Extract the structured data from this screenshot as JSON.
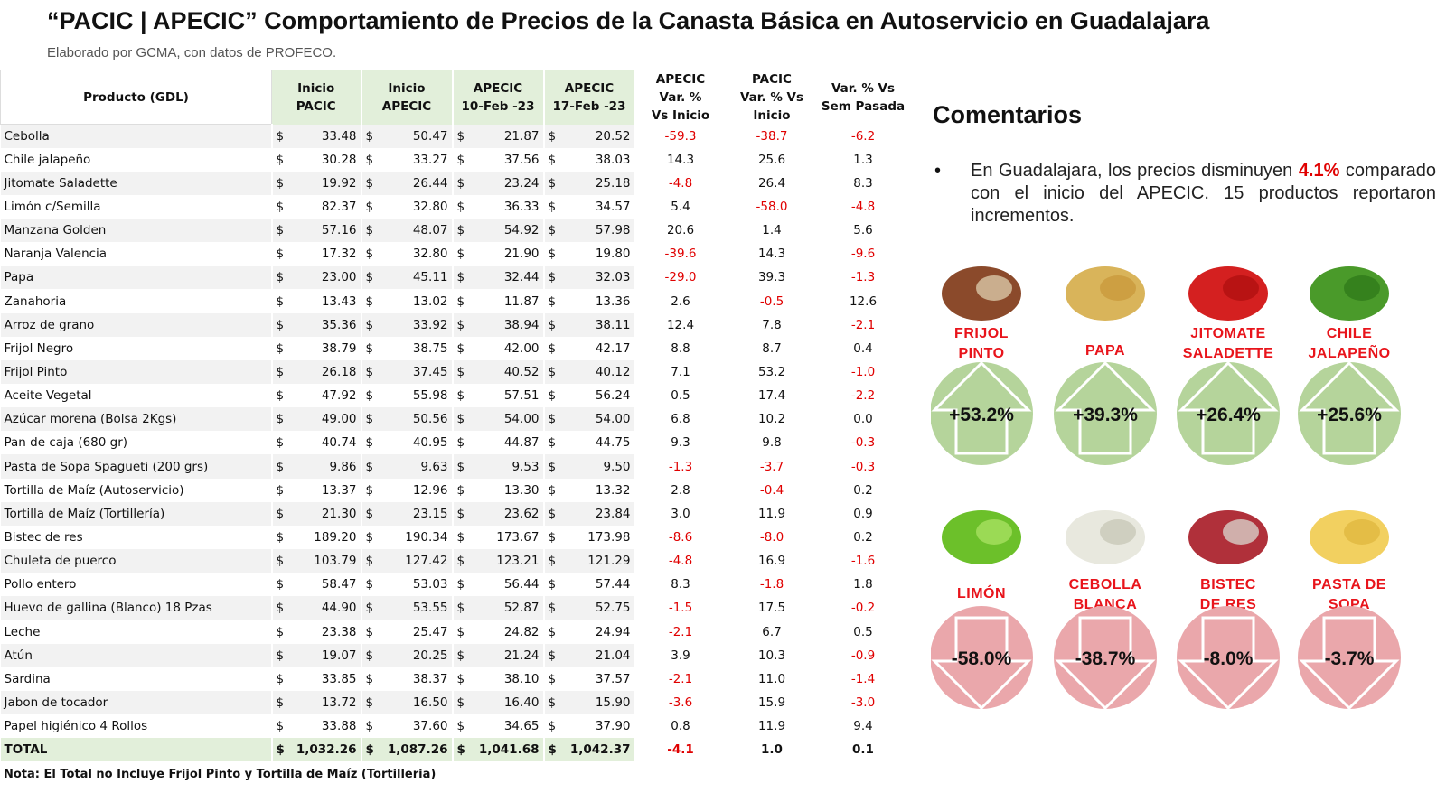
{
  "header": {
    "title": "“PACIC | APECIC” Comportamiento de Precios de la Canasta Básica en Autoservicio en Guadalajara",
    "subtitle": "Elaborado por GCMA, con datos de PROFECO."
  },
  "table": {
    "columns": [
      "Producto (GDL)",
      "Inicio\nPACIC",
      "Inicio\nAPECIC",
      "APECIC\n10-Feb -23",
      "APECIC\n17-Feb -23",
      "APECIC\nVar. %\nVs Inicio",
      "PACIC\nVar. % Vs\nInicio",
      "Var. % Vs\nSem Pasada"
    ],
    "currency": "$",
    "rows": [
      [
        "Cebolla",
        "33.48",
        "50.47",
        "21.87",
        "20.52",
        "-59.3",
        "-38.7",
        "-6.2"
      ],
      [
        "Chile jalapeño",
        "30.28",
        "33.27",
        "37.56",
        "38.03",
        "14.3",
        "25.6",
        "1.3"
      ],
      [
        "Jitomate Saladette",
        "19.92",
        "26.44",
        "23.24",
        "25.18",
        "-4.8",
        "26.4",
        "8.3"
      ],
      [
        "Limón c/Semilla",
        "82.37",
        "32.80",
        "36.33",
        "34.57",
        "5.4",
        "-58.0",
        "-4.8"
      ],
      [
        "Manzana Golden",
        "57.16",
        "48.07",
        "54.92",
        "57.98",
        "20.6",
        "1.4",
        "5.6"
      ],
      [
        "Naranja Valencia",
        "17.32",
        "32.80",
        "21.90",
        "19.80",
        "-39.6",
        "14.3",
        "-9.6"
      ],
      [
        "Papa",
        "23.00",
        "45.11",
        "32.44",
        "32.03",
        "-29.0",
        "39.3",
        "-1.3"
      ],
      [
        "Zanahoria",
        "13.43",
        "13.02",
        "11.87",
        "13.36",
        "2.6",
        "-0.5",
        "12.6"
      ],
      [
        "Arroz de grano",
        "35.36",
        "33.92",
        "38.94",
        "38.11",
        "12.4",
        "7.8",
        "-2.1"
      ],
      [
        "Frijol Negro",
        "38.79",
        "38.75",
        "42.00",
        "42.17",
        "8.8",
        "8.7",
        "0.4"
      ],
      [
        "Frijol Pinto",
        "26.18",
        "37.45",
        "40.52",
        "40.12",
        "7.1",
        "53.2",
        "-1.0"
      ],
      [
        "Aceite Vegetal",
        "47.92",
        "55.98",
        "57.51",
        "56.24",
        "0.5",
        "17.4",
        "-2.2"
      ],
      [
        "Azúcar morena (Bolsa 2Kgs)",
        "49.00",
        "50.56",
        "54.00",
        "54.00",
        "6.8",
        "10.2",
        "0.0"
      ],
      [
        "Pan de caja (680 gr)",
        "40.74",
        "40.95",
        "44.87",
        "44.75",
        "9.3",
        "9.8",
        "-0.3"
      ],
      [
        "Pasta de Sopa Spagueti (200 grs)",
        "9.86",
        "9.63",
        "9.53",
        "9.50",
        "-1.3",
        "-3.7",
        "-0.3"
      ],
      [
        "Tortilla de Maíz (Autoservicio)",
        "13.37",
        "12.96",
        "13.30",
        "13.32",
        "2.8",
        "-0.4",
        "0.2"
      ],
      [
        "Tortilla de Maíz (Tortillería)",
        "21.30",
        "23.15",
        "23.62",
        "23.84",
        "3.0",
        "11.9",
        "0.9"
      ],
      [
        "Bistec de res",
        "189.20",
        "190.34",
        "173.67",
        "173.98",
        "-8.6",
        "-8.0",
        "0.2"
      ],
      [
        "Chuleta de puerco",
        "103.79",
        "127.42",
        "123.21",
        "121.29",
        "-4.8",
        "16.9",
        "-1.6"
      ],
      [
        "Pollo entero",
        "58.47",
        "53.03",
        "56.44",
        "57.44",
        "8.3",
        "-1.8",
        "1.8"
      ],
      [
        "Huevo de gallina (Blanco) 18 Pzas",
        "44.90",
        "53.55",
        "52.87",
        "52.75",
        "-1.5",
        "17.5",
        "-0.2"
      ],
      [
        "Leche",
        "23.38",
        "25.47",
        "24.82",
        "24.94",
        "-2.1",
        "6.7",
        "0.5"
      ],
      [
        "Atún",
        "19.07",
        "20.25",
        "21.24",
        "21.04",
        "3.9",
        "10.3",
        "-0.9"
      ],
      [
        "Sardina",
        "33.85",
        "38.37",
        "38.10",
        "37.57",
        "-2.1",
        "11.0",
        "-1.4"
      ],
      [
        "Jabon de tocador",
        "13.72",
        "16.50",
        "16.40",
        "15.90",
        "-3.6",
        "15.9",
        "-3.0"
      ],
      [
        "Papel higiénico 4 Rollos",
        "33.88",
        "37.60",
        "34.65",
        "37.90",
        "0.8",
        "11.9",
        "9.4"
      ]
    ],
    "total_row": [
      "TOTAL",
      "1,032.26",
      "1,087.26",
      "1,041.68",
      "1,042.37",
      "-4.1",
      "1.0",
      "0.1"
    ],
    "note": "Nota: El Total no Incluye Frijol Pinto y Tortilla de Maíz (Tortilleria)"
  },
  "comments": {
    "title": "Comentarios",
    "bullet": "•",
    "text_before": "En Guadalajara, los precios disminuyen ",
    "highlight": "4.1%",
    "text_after": " comparado con el inicio del APECIC. 15 productos reportaron incrementos."
  },
  "highlights": {
    "increases": [
      {
        "product": "FRIJOL\nPINTO",
        "change": "+53.2%"
      },
      {
        "product": "PAPA",
        "change": "+39.3%"
      },
      {
        "product": "JITOMATE\nSALADETTE",
        "change": "+26.4%"
      },
      {
        "product": "CHILE\nJALAPEÑO",
        "change": "+25.6%"
      }
    ],
    "decreases": [
      {
        "product": "LIMÓN",
        "change": "-58.0%"
      },
      {
        "product": "CEBOLLA\nBLANCA",
        "change": "-38.7%"
      },
      {
        "product": "BISTEC\nDE RES",
        "change": "-8.0%"
      },
      {
        "product": "PASTA DE\nSOPA",
        "change": "-3.7%"
      }
    ]
  }
}
